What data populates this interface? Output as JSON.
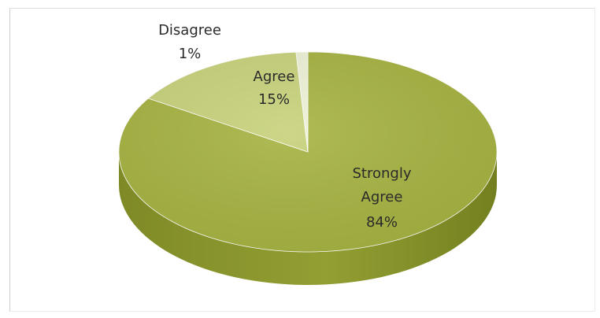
{
  "chart_data": {
    "type": "pie",
    "style": "3d",
    "slices": [
      {
        "label_lines": [
          "Strongly",
          "Agree"
        ],
        "pct_label": "84%",
        "value": 84,
        "color": "#a7b342"
      },
      {
        "label_lines": [
          "Agree"
        ],
        "pct_label": "15%",
        "value": 15,
        "color": "#c8d27b"
      },
      {
        "label_lines": [
          "Disagree"
        ],
        "pct_label": "1%",
        "value": 1,
        "color": "#eef2d6"
      }
    ]
  }
}
